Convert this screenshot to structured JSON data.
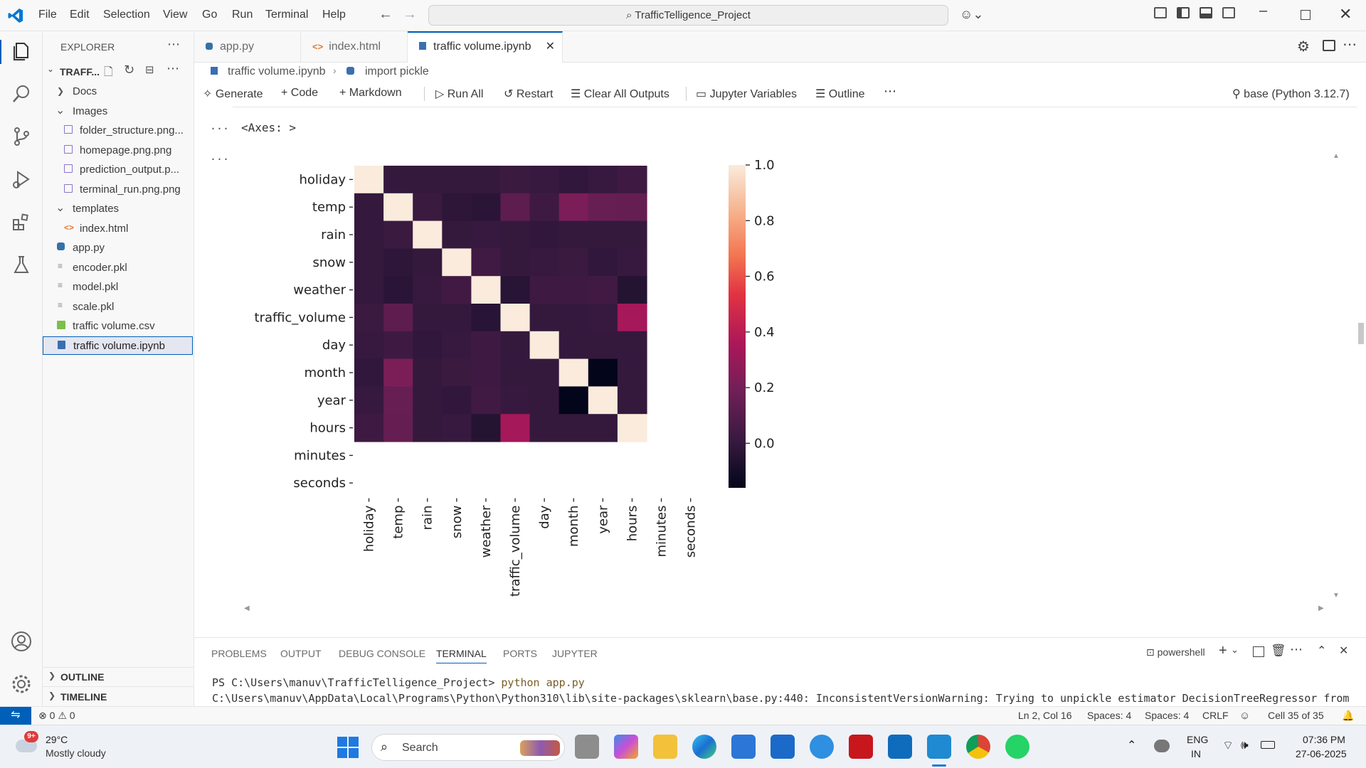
{
  "menu": [
    "File",
    "Edit",
    "Selection",
    "View",
    "Go",
    "Run",
    "Terminal",
    "Help"
  ],
  "search_title": "TrafficTelligence_Project",
  "explorer": {
    "title": "EXPLORER",
    "project": "TRAFF...",
    "items": [
      {
        "label": "Docs",
        "type": "folder-closed"
      },
      {
        "label": "Images",
        "type": "folder-open"
      },
      {
        "label": "folder_structure.png...",
        "type": "image"
      },
      {
        "label": "homepage.png.png",
        "type": "image"
      },
      {
        "label": "prediction_output.p...",
        "type": "image"
      },
      {
        "label": "terminal_run.png.png",
        "type": "image"
      },
      {
        "label": "templates",
        "type": "folder-open"
      },
      {
        "label": "index.html",
        "type": "html"
      },
      {
        "label": "app.py",
        "type": "python"
      },
      {
        "label": "encoder.pkl",
        "type": "file"
      },
      {
        "label": "model.pkl",
        "type": "file"
      },
      {
        "label": "scale.pkl",
        "type": "file"
      },
      {
        "label": "traffic volume.csv",
        "type": "csv"
      },
      {
        "label": "traffic volume.ipynb",
        "type": "notebook"
      }
    ],
    "outline": "OUTLINE",
    "timeline": "TIMELINE"
  },
  "tabs": [
    {
      "label": "app.py"
    },
    {
      "label": "index.html"
    },
    {
      "label": "traffic volume.ipynb"
    }
  ],
  "breadcrumb": {
    "file": "traffic volume.ipynb",
    "cell": "import pickle"
  },
  "toolbar": {
    "generate": "Generate",
    "code": "Code",
    "markdown": "Markdown",
    "run_all": "Run All",
    "restart": "Restart",
    "clear": "Clear All Outputs",
    "variables": "Jupyter Variables",
    "outline": "Outline",
    "kernel": "base (Python 3.12.7)"
  },
  "cell_output": {
    "ellipsis": "...",
    "axes_text": "<Axes: >"
  },
  "chart_data": {
    "type": "heatmap",
    "row_labels": [
      "holiday",
      "temp",
      "rain",
      "snow",
      "weather",
      "traffic_volume",
      "day",
      "month",
      "year",
      "hours",
      "minutes",
      "seconds"
    ],
    "col_labels": [
      "holiday",
      "temp",
      "rain",
      "snow",
      "weather",
      "traffic_volume",
      "day",
      "month",
      "year",
      "hours",
      "minutes",
      "seconds"
    ],
    "values": [
      [
        1.0,
        -0.0,
        -0.0,
        -0.0,
        -0.0,
        0.02,
        0.01,
        -0.01,
        0.01,
        0.03,
        null,
        null
      ],
      [
        -0.0,
        1.0,
        0.02,
        -0.02,
        -0.03,
        0.13,
        0.03,
        0.22,
        0.16,
        0.15,
        null,
        null
      ],
      [
        -0.0,
        0.02,
        1.0,
        0.0,
        0.01,
        0.0,
        -0.01,
        0.0,
        0.0,
        0.0,
        null,
        null
      ],
      [
        -0.0,
        -0.02,
        0.0,
        1.0,
        0.04,
        0.0,
        0.01,
        0.02,
        -0.01,
        0.01,
        null,
        null
      ],
      [
        -0.0,
        -0.03,
        0.01,
        0.04,
        1.0,
        -0.04,
        0.03,
        0.03,
        0.04,
        -0.05,
        null,
        null
      ],
      [
        0.02,
        0.13,
        0.0,
        0.0,
        -0.04,
        1.0,
        -0.0,
        0.0,
        0.01,
        0.34,
        null,
        null
      ],
      [
        0.01,
        0.03,
        -0.01,
        0.01,
        0.03,
        -0.0,
        1.0,
        0.0,
        0.0,
        -0.0,
        null,
        null
      ],
      [
        -0.01,
        0.22,
        0.0,
        0.02,
        0.03,
        0.0,
        0.0,
        1.0,
        -0.16,
        0.0,
        null,
        null
      ],
      [
        0.01,
        0.16,
        0.0,
        -0.01,
        0.04,
        0.01,
        0.0,
        -0.16,
        1.0,
        -0.0,
        null,
        null
      ],
      [
        0.03,
        0.15,
        0.0,
        0.01,
        -0.05,
        0.34,
        -0.0,
        0.0,
        -0.0,
        1.0,
        null,
        null
      ],
      [
        null,
        null,
        null,
        null,
        null,
        null,
        null,
        null,
        null,
        null,
        null,
        null
      ],
      [
        null,
        null,
        null,
        null,
        null,
        null,
        null,
        null,
        null,
        null,
        null,
        null
      ]
    ],
    "colorbar_ticks": [
      "1.0",
      "0.8",
      "0.6",
      "0.4",
      "0.2",
      "0.0"
    ],
    "colorbar_range": [
      -0.16,
      1.0
    ],
    "colormap": "rocket"
  },
  "panel": {
    "tabs": [
      "PROBLEMS",
      "OUTPUT",
      "DEBUG CONSOLE",
      "TERMINAL",
      "PORTS",
      "JUPYTER"
    ],
    "shell": "powershell",
    "line1_prompt": "PS C:\\Users\\manuv\\TrafficTelligence_Project>",
    "line1_cmd": "python app.py",
    "line2": "C:\\Users\\manuv\\AppData\\Local\\Programs\\Python\\Python310\\lib\\site-packages\\sklearn\\base.py:440: InconsistentVersionWarning: Trying to unpickle estimator DecisionTreeRegressor from"
  },
  "status": {
    "errors": "0",
    "warnings": "0",
    "position": "Ln 2, Col 16",
    "spaces1": "Spaces: 4",
    "spaces2": "Spaces: 4",
    "eol": "CRLF",
    "cell": "Cell 35 of 35"
  },
  "taskbar": {
    "weather_temp": "29°C",
    "weather_desc": "Mostly cloudy",
    "weather_badge": "9+",
    "search": "Search",
    "lang1": "ENG",
    "lang2": "IN",
    "time": "07:36 PM",
    "date": "27-06-2025"
  }
}
